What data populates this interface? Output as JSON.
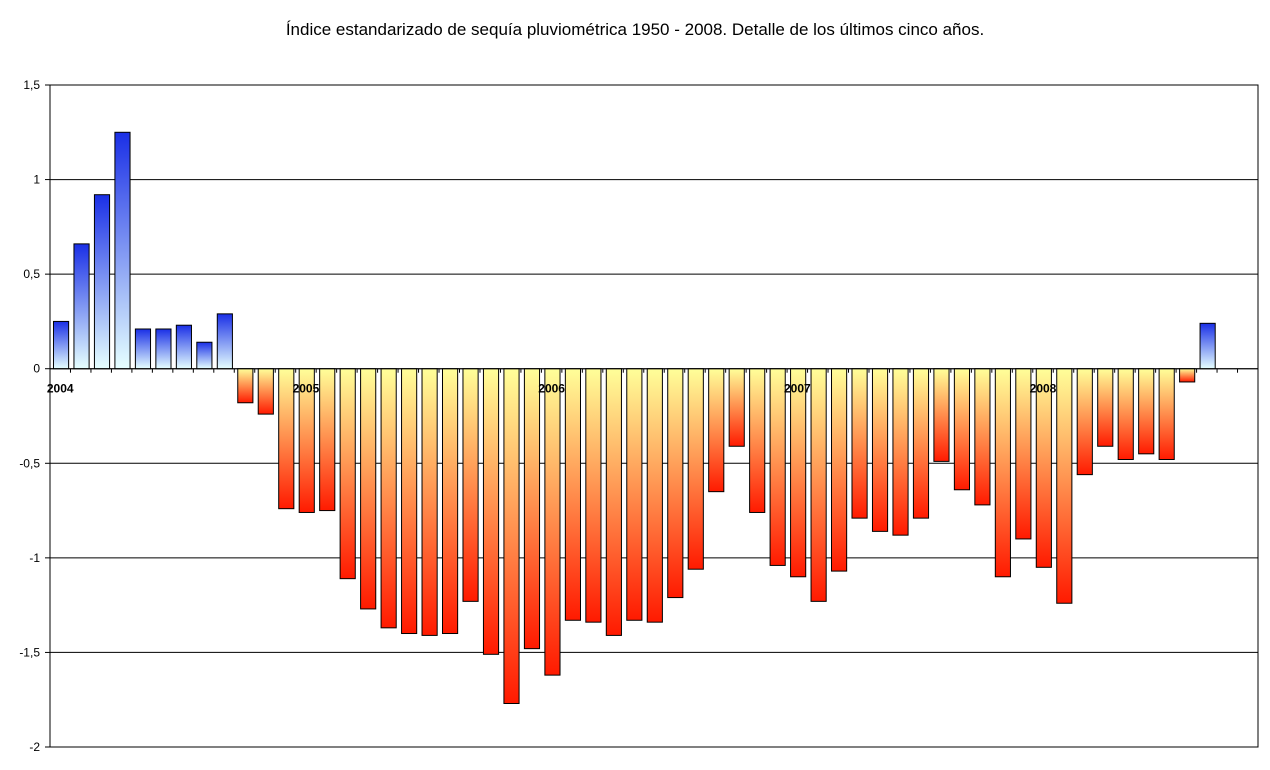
{
  "chart_data": {
    "type": "bar",
    "title": "Índice estandarizado de sequía pluviométrica 1950 - 2008. Detalle de los últimos cinco años.",
    "xlabel": "",
    "ylabel": "",
    "ylim": [
      -2,
      1.5
    ],
    "yticks": [
      1.5,
      1,
      0.5,
      0,
      -0.5,
      -1,
      -1.5,
      -2
    ],
    "ytick_labels": [
      "1,5",
      "1",
      "0,5",
      "0",
      "-0,5",
      "-1",
      "-1,5",
      "-2"
    ],
    "year_labels": [
      {
        "label": "2004",
        "index": 0
      },
      {
        "label": "2005",
        "index": 12
      },
      {
        "label": "2006",
        "index": 24
      },
      {
        "label": "2007",
        "index": 36
      },
      {
        "label": "2008",
        "index": 48
      }
    ],
    "grid": true,
    "slots": 59,
    "values": [
      0.25,
      0.66,
      0.92,
      1.25,
      0.21,
      0.21,
      0.23,
      0.14,
      0.29,
      -0.18,
      -0.24,
      -0.74,
      -0.76,
      -0.75,
      -1.11,
      -1.27,
      -1.37,
      -1.4,
      -1.41,
      -1.4,
      -1.23,
      -1.51,
      -1.77,
      -1.48,
      -1.62,
      -1.33,
      -1.34,
      -1.41,
      -1.33,
      -1.34,
      -1.21,
      -1.06,
      -0.65,
      -0.41,
      -0.76,
      -1.04,
      -1.1,
      -1.23,
      -1.07,
      -0.79,
      -0.86,
      -0.88,
      -0.79,
      -0.49,
      -0.64,
      -0.72,
      -1.1,
      -0.9,
      -1.05,
      -1.24,
      -0.56,
      -0.41,
      -0.48,
      -0.45,
      -0.48,
      -0.07,
      0.24
    ],
    "colors": {
      "positive_top": "#1a2fe6",
      "positive_bottom": "#e6ffff",
      "negative_top": "#ffff99",
      "negative_bottom": "#ff1a00",
      "grid": "#000000",
      "bar_edge": "#000000"
    }
  }
}
